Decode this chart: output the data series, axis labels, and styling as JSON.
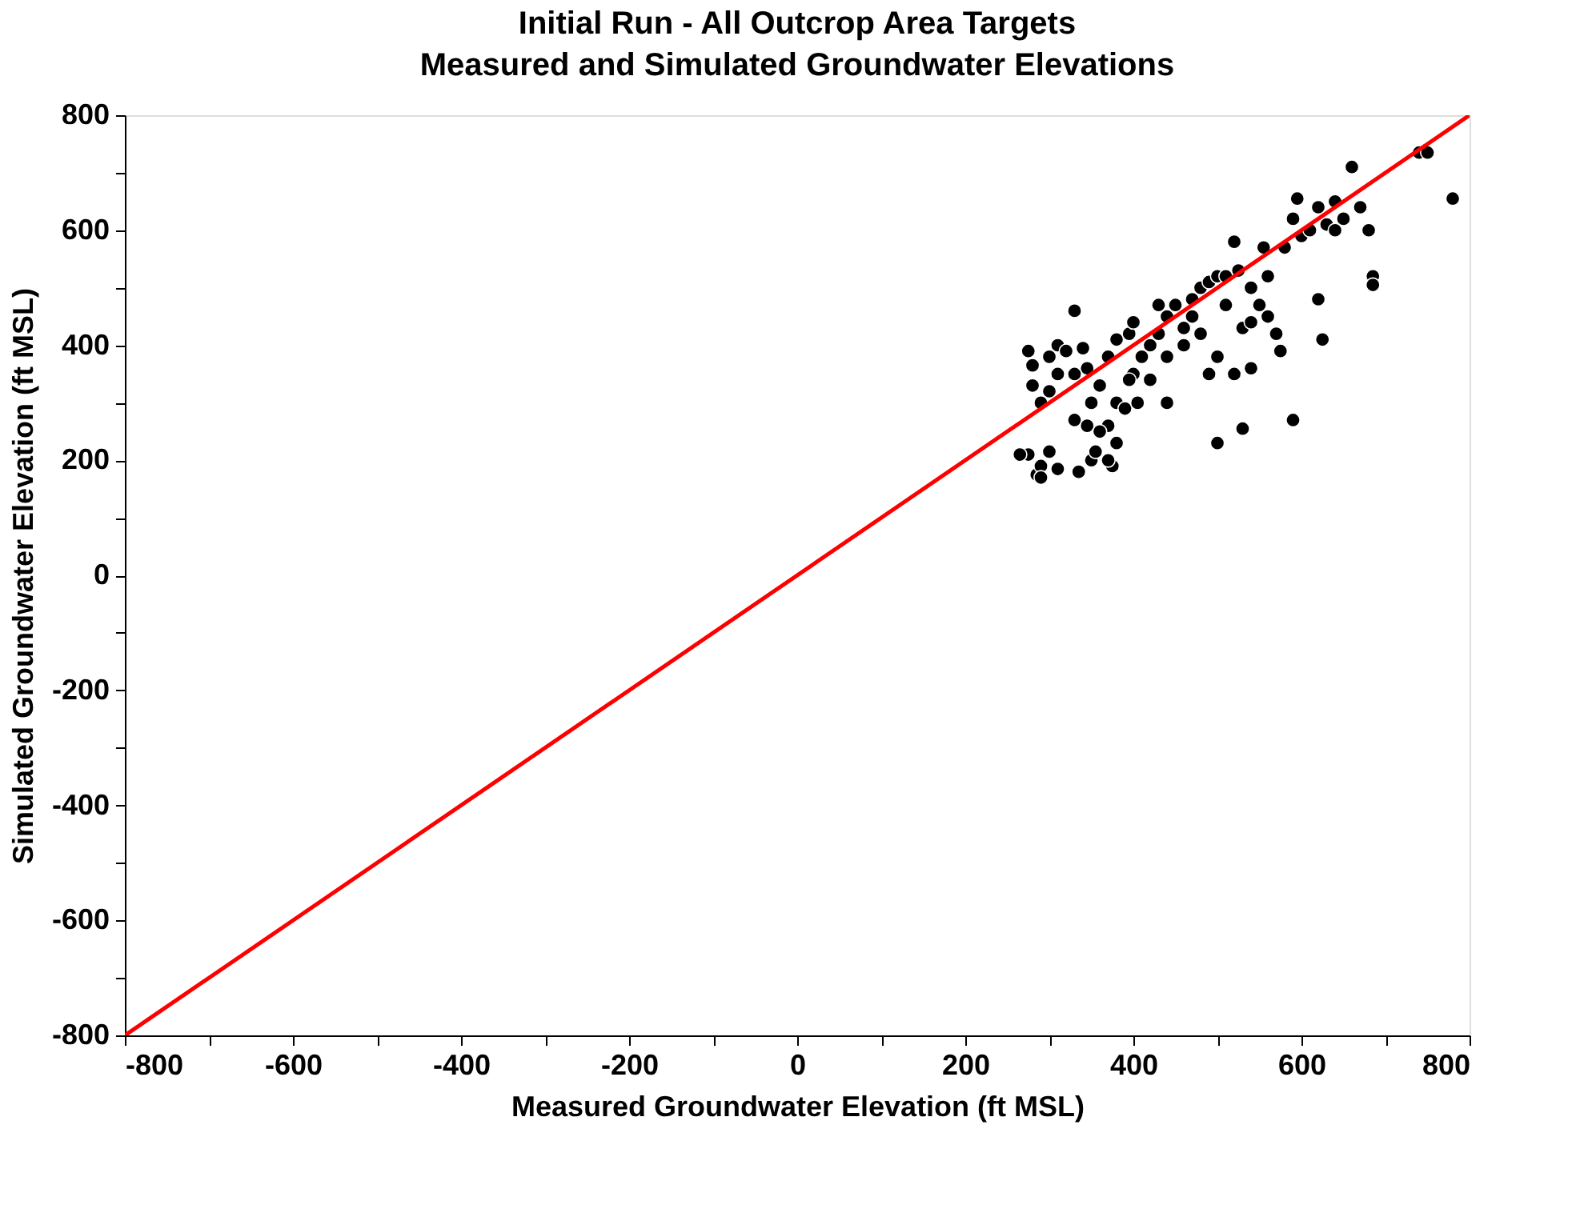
{
  "chart_data": {
    "type": "scatter",
    "title": "Initial Run - All Outcrop Area Targets",
    "subtitle": "Measured and Simulated Groundwater Elevations",
    "xlabel": "Measured Groundwater Elevation (ft MSL)",
    "ylabel": "Simulated Groundwater Elevation (ft MSL)",
    "xlim": [
      -800,
      800
    ],
    "ylim": [
      -800,
      800
    ],
    "xticks": [
      -800,
      {
        "value": -700,
        "label": null
      },
      -600,
      {
        "value": -500,
        "label": null
      },
      -400,
      {
        "value": -300,
        "label": null
      },
      -200,
      {
        "value": -100,
        "label": null
      },
      0,
      {
        "value": 100,
        "label": null
      },
      200,
      {
        "value": 300,
        "label": null
      },
      400,
      {
        "value": 500,
        "label": null
      },
      600,
      {
        "value": 700,
        "label": null
      },
      800
    ],
    "yticks": [
      -800,
      {
        "value": -700,
        "label": null
      },
      -600,
      {
        "value": -500,
        "label": null
      },
      -400,
      {
        "value": -300,
        "label": null
      },
      -200,
      {
        "value": -100,
        "label": null
      },
      0,
      {
        "value": 100,
        "label": null
      },
      200,
      {
        "value": 300,
        "label": null
      },
      400,
      {
        "value": 500,
        "label": null
      },
      600,
      {
        "value": 700,
        "label": null
      },
      800
    ],
    "grid": false,
    "marker": "circle",
    "series": [
      {
        "color": "#000000",
        "x": [
          275,
          285,
          290,
          300,
          310,
          335,
          350,
          375,
          355,
          290,
          275,
          280,
          280,
          290,
          300,
          310,
          320,
          330,
          340,
          345,
          350,
          360,
          370,
          380,
          370,
          390,
          400,
          380,
          395,
          400,
          410,
          420,
          430,
          440,
          450,
          460,
          470,
          480,
          490,
          500,
          510,
          520,
          525,
          540,
          550,
          560,
          570,
          575,
          530,
          500,
          490,
          500,
          530,
          590,
          540,
          560,
          580,
          600,
          610,
          620,
          630,
          640,
          650,
          660,
          670,
          680,
          685,
          685,
          625,
          620,
          595,
          590,
          640,
          740,
          750,
          780,
          440,
          420,
          460,
          480,
          395,
          330,
          345,
          360,
          430,
          470,
          510,
          555,
          330,
          310,
          300,
          265,
          540,
          520,
          440,
          405,
          380,
          370
        ],
        "values": [
          210,
          175,
          190,
          215,
          185,
          180,
          200,
          190,
          215,
          170,
          390,
          365,
          330,
          300,
          320,
          400,
          390,
          460,
          395,
          360,
          300,
          330,
          380,
          300,
          260,
          290,
          350,
          410,
          420,
          440,
          380,
          400,
          420,
          450,
          470,
          430,
          480,
          500,
          510,
          520,
          470,
          580,
          530,
          500,
          470,
          450,
          420,
          390,
          430,
          380,
          350,
          230,
          255,
          270,
          440,
          520,
          570,
          590,
          600,
          640,
          610,
          650,
          620,
          710,
          640,
          600,
          520,
          505,
          410,
          480,
          655,
          620,
          600,
          735,
          735,
          655,
          380,
          340,
          400,
          420,
          340,
          270,
          260,
          250,
          470,
          450,
          520,
          570,
          350,
          350,
          380,
          210,
          360,
          350,
          300,
          300,
          230,
          200
        ]
      },
      {
        "type": "line",
        "color": "#ff0000",
        "line_style": "solid",
        "marker": "none",
        "x": [
          -800,
          800
        ],
        "values": [
          -800,
          800
        ]
      }
    ]
  }
}
